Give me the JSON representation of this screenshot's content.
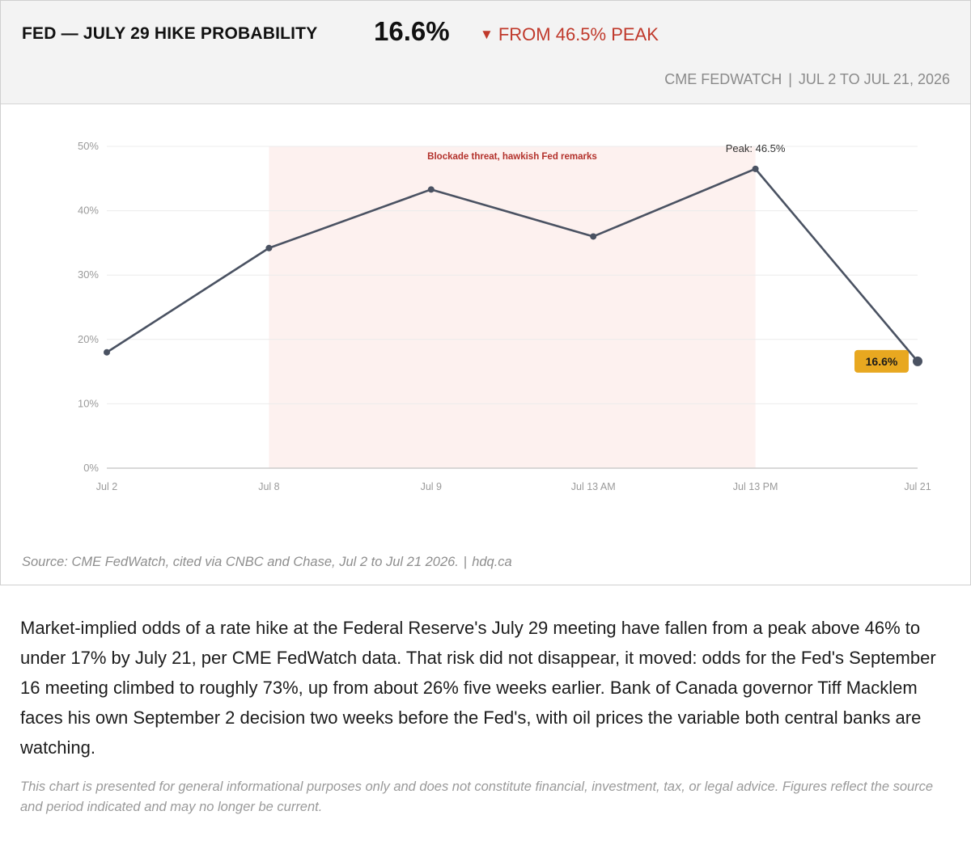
{
  "header": {
    "title": "FED — JULY 29 HIKE PROBABILITY",
    "value": "16.6%",
    "delta_arrow": "▼",
    "delta_text": "FROM 46.5% PEAK",
    "source_name": "CME FEDWATCH",
    "separator": "|",
    "period": "JUL 2 TO JUL 21, 2026"
  },
  "colors": {
    "line": "#4a5262",
    "shade": "#fdf1ef",
    "shade_label": "#b3312b",
    "badge": "#e8a820",
    "delta": "#c0392b"
  },
  "chart_data": {
    "type": "line",
    "categories": [
      "Jul 2",
      "Jul 8",
      "Jul 9",
      "Jul 13 AM",
      "Jul 13 PM",
      "Jul 21"
    ],
    "series": [
      {
        "values": [
          18.0,
          34.2,
          43.3,
          36.0,
          46.5,
          16.6
        ]
      }
    ],
    "ylim": [
      0,
      50
    ],
    "yticks": [
      0,
      10,
      20,
      30,
      40,
      50
    ],
    "ytick_labels": [
      "0%",
      "10%",
      "20%",
      "30%",
      "40%",
      "50%"
    ],
    "grid": true,
    "shaded_region": {
      "from": "Jul 8",
      "to": "Jul 13 PM",
      "label": "Blockade threat, hawkish Fed remarks"
    },
    "annotations": {
      "peak_label": "Peak: 46.5%",
      "last_label": "16.6%"
    }
  },
  "footer": {
    "source": "Source: CME FedWatch, cited via CNBC and Chase, Jul 2 to Jul 21 2026.",
    "separator": "|",
    "site": "hdq.ca"
  },
  "description": "Market-implied odds of a rate hike at the Federal Reserve's July 29 meeting have fallen from a peak above 46% to under 17% by July 21, per CME FedWatch data. That risk did not disappear, it moved: odds for the Fed's September 16 meeting climbed to roughly 73%, up from about 26% five weeks earlier. Bank of Canada governor Tiff Macklem faces his own September 2 decision two weeks before the Fed's, with oil prices the variable both central banks are watching.",
  "disclaimer": "This chart is presented for general informational purposes only and does not constitute financial, investment, tax, or legal advice. Figures reflect the source and period indicated and may no longer be current."
}
